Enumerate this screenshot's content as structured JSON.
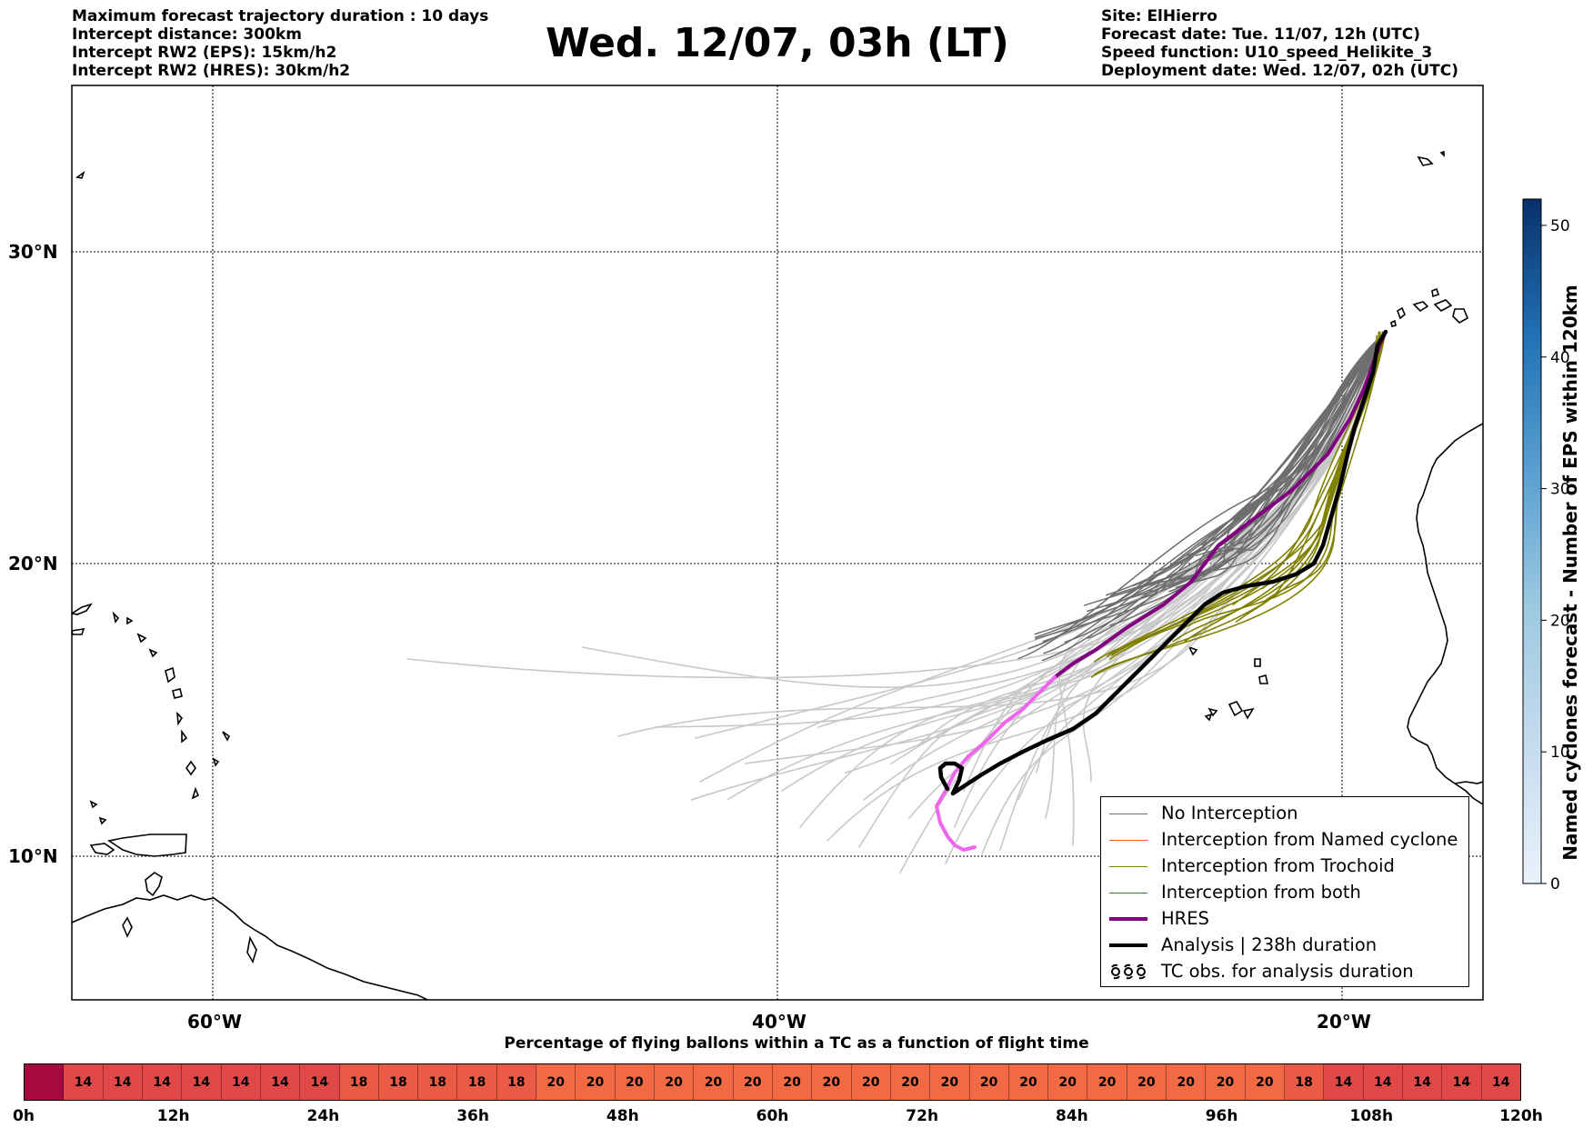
{
  "header": {
    "left_lines": [
      "Maximum forecast trajectory duration : 10 days",
      "Intercept distance: 300km",
      "Intercept RW2 (EPS):  15km/h2",
      "Intercept RW2 (HRES): 30km/h2"
    ],
    "title": "Wed. 12/07, 03h (LT)",
    "right_lines": [
      "Site: ElHierro",
      "Forecast date: Tue. 11/07, 12h (UTC)",
      "Speed function: U10_speed_Helikite_3",
      "Deployment date: Wed. 12/07, 02h (UTC)"
    ]
  },
  "map": {
    "lat_labels": [
      "30°N",
      "20°N",
      "10°N"
    ],
    "lon_labels": [
      "60°W",
      "40°W",
      "20°W"
    ],
    "colors": {
      "no_interception": "#6e6e6e",
      "no_interception_light": "#c8c8c8",
      "named_cyclone": "#ff5722",
      "trochoid": "#808000",
      "both": "#228b22",
      "hres": "#800080",
      "hres_light": "#ee66ee",
      "analysis": "#000000"
    }
  },
  "colorbar": {
    "title": "Named cyclones forecast - Number of EPS within 120km",
    "ticks": [
      "0",
      "10",
      "20",
      "30",
      "40",
      "50"
    ],
    "min": 0,
    "max": 52
  },
  "legend": {
    "items": [
      {
        "label": "No Interception",
        "icon": "line-thin",
        "color": "#6e6e6e"
      },
      {
        "label": "Interception from Named cyclone",
        "icon": "line-thin",
        "color": "#ff5722"
      },
      {
        "label": "Interception from Trochoid",
        "icon": "line-thin",
        "color": "#808000"
      },
      {
        "label": "Interception from both",
        "icon": "line-thin",
        "color": "#228b22"
      },
      {
        "label": "HRES",
        "icon": "line-thick",
        "color": "#800080"
      },
      {
        "label": "Analysis | 238h duration",
        "icon": "line-thick",
        "color": "#000000"
      },
      {
        "label": "TC obs. for analysis duration",
        "icon": "cyclone-symbols-icon",
        "color": "#000000"
      }
    ]
  },
  "timebar": {
    "title": "Percentage of flying ballons within a TC as a function of flight time",
    "cells": [
      "",
      "14",
      "14",
      "14",
      "14",
      "14",
      "14",
      "14",
      "18",
      "18",
      "18",
      "18",
      "18",
      "20",
      "20",
      "20",
      "20",
      "20",
      "20",
      "20",
      "20",
      "20",
      "20",
      "20",
      "20",
      "20",
      "20",
      "20",
      "20",
      "20",
      "20",
      "20",
      "18",
      "14",
      "14",
      "14",
      "14",
      "14"
    ],
    "color_scale": {
      "14": "#e04848",
      "18": "#ea5b46",
      "20": "#f26a43",
      "first": "#a40a40"
    },
    "tick_labels": [
      "0h",
      "12h",
      "24h",
      "36h",
      "48h",
      "60h",
      "72h",
      "84h",
      "96h",
      "108h",
      "120h"
    ]
  }
}
